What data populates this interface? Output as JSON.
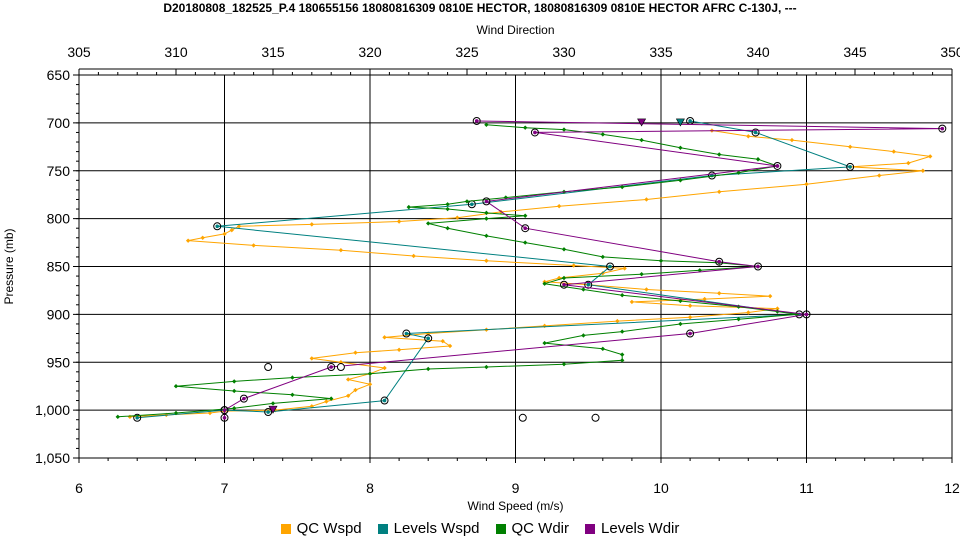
{
  "chart_data": {
    "type": "line",
    "title": "D20180808_182525_P.4 180655156 18080816309 0810E HECTOR, 18080816309 0810E HECTOR AFRC C-130J, ---",
    "xlabel": "Wind Speed (m/s)",
    "x2label": "Wind Direction",
    "ylabel": "Pressure (mb)",
    "xlim": [
      6,
      12
    ],
    "x2lim": [
      305,
      350
    ],
    "ylim": [
      650,
      1050
    ],
    "y_inverted": true,
    "grid": true,
    "x_ticks": [
      "6",
      "7",
      "8",
      "9",
      "10",
      "11",
      "12"
    ],
    "x2_ticks": [
      "305",
      "310",
      "315",
      "320",
      "325",
      "330",
      "335",
      "340",
      "345",
      "350"
    ],
    "y_ticks": [
      "650",
      "700",
      "750",
      "800",
      "850",
      "900",
      "950",
      "1,000",
      "1,050"
    ],
    "legend_position": "bottom",
    "series": [
      {
        "name": "QC Wspd",
        "color": "#FFA500",
        "axis": "bottom",
        "points": [
          [
            10.35,
            708
          ],
          [
            10.6,
            714
          ],
          [
            10.9,
            718
          ],
          [
            11.3,
            725
          ],
          [
            11.6,
            730
          ],
          [
            11.85,
            735
          ],
          [
            11.7,
            742
          ],
          [
            11.3,
            746
          ],
          [
            11.8,
            750
          ],
          [
            11.5,
            755
          ],
          [
            11.0,
            764
          ],
          [
            10.4,
            772
          ],
          [
            9.9,
            780
          ],
          [
            9.3,
            787
          ],
          [
            8.9,
            793
          ],
          [
            8.6,
            799
          ],
          [
            8.2,
            803
          ],
          [
            7.6,
            806
          ],
          [
            7.1,
            808
          ],
          [
            7.05,
            812
          ],
          [
            7.0,
            816
          ],
          [
            6.85,
            820
          ],
          [
            6.75,
            823
          ],
          [
            7.2,
            828
          ],
          [
            7.8,
            833
          ],
          [
            8.3,
            839
          ],
          [
            8.8,
            844
          ],
          [
            9.4,
            849
          ],
          [
            9.75,
            852
          ],
          [
            9.6,
            857
          ],
          [
            9.3,
            862
          ],
          [
            9.2,
            866
          ],
          [
            9.5,
            869
          ],
          [
            9.9,
            874
          ],
          [
            10.4,
            878
          ],
          [
            10.75,
            881
          ],
          [
            10.3,
            884
          ],
          [
            9.8,
            887
          ],
          [
            10.2,
            891
          ],
          [
            10.8,
            894
          ],
          [
            10.6,
            898
          ],
          [
            10.2,
            903
          ],
          [
            9.7,
            907
          ],
          [
            9.2,
            912
          ],
          [
            8.8,
            916
          ],
          [
            8.4,
            920
          ],
          [
            8.1,
            924
          ],
          [
            8.5,
            928
          ],
          [
            8.55,
            933
          ],
          [
            8.2,
            937
          ],
          [
            7.9,
            940
          ],
          [
            7.6,
            946
          ],
          [
            7.8,
            950
          ],
          [
            8.1,
            956
          ],
          [
            8.0,
            962
          ],
          [
            7.85,
            968
          ],
          [
            8.0,
            973
          ],
          [
            7.9,
            979
          ],
          [
            7.85,
            985
          ],
          [
            7.7,
            991
          ],
          [
            7.6,
            996
          ],
          [
            7.35,
            1000
          ],
          [
            7.0,
            1001
          ],
          [
            6.9,
            1003
          ],
          [
            6.6,
            1005
          ],
          [
            6.35,
            1007
          ]
        ]
      },
      {
        "name": "Levels Wspd",
        "color": "#008080",
        "axis": "bottom",
        "points": [
          [
            10.2,
            698
          ],
          [
            10.65,
            710
          ],
          [
            11.3,
            746
          ],
          [
            10.35,
            755
          ],
          [
            8.7,
            785
          ],
          [
            6.95,
            808
          ],
          [
            9.65,
            850
          ],
          [
            9.5,
            869
          ],
          [
            10.95,
            900
          ],
          [
            8.25,
            920
          ],
          [
            8.4,
            925
          ],
          [
            8.1,
            990
          ],
          [
            7.3,
            1002
          ],
          [
            7.0,
            1000
          ],
          [
            6.4,
            1008
          ]
        ]
      },
      {
        "name": "QC Wdir",
        "color": "#008000",
        "axis": "top",
        "points": [
          [
            326,
            702
          ],
          [
            328,
            705
          ],
          [
            330,
            707
          ],
          [
            332,
            712
          ],
          [
            334,
            718
          ],
          [
            336,
            726
          ],
          [
            338,
            733
          ],
          [
            340,
            738
          ],
          [
            341,
            745
          ],
          [
            339,
            752
          ],
          [
            336,
            760
          ],
          [
            333,
            767
          ],
          [
            330,
            772
          ],
          [
            327,
            778
          ],
          [
            325,
            782
          ],
          [
            324,
            785
          ],
          [
            322,
            788
          ],
          [
            324,
            790
          ],
          [
            326,
            794
          ],
          [
            328,
            797
          ],
          [
            326,
            800
          ],
          [
            323,
            805
          ],
          [
            324,
            810
          ],
          [
            326,
            818
          ],
          [
            328,
            825
          ],
          [
            330,
            832
          ],
          [
            332,
            840
          ],
          [
            335,
            844
          ],
          [
            338,
            846
          ],
          [
            340,
            850
          ],
          [
            337,
            854
          ],
          [
            334,
            858
          ],
          [
            330,
            862
          ],
          [
            329,
            868
          ],
          [
            331,
            874
          ],
          [
            333,
            880
          ],
          [
            336,
            886
          ],
          [
            339,
            892
          ],
          [
            341,
            897
          ],
          [
            342,
            900
          ],
          [
            339,
            905
          ],
          [
            336,
            910
          ],
          [
            333,
            918
          ],
          [
            331,
            922
          ],
          [
            329,
            930
          ],
          [
            332,
            936
          ],
          [
            333,
            942
          ],
          [
            333,
            948
          ],
          [
            330,
            952
          ],
          [
            326,
            955
          ],
          [
            323,
            957
          ],
          [
            320,
            962
          ],
          [
            316,
            966
          ],
          [
            313,
            970
          ],
          [
            310,
            975
          ],
          [
            313,
            980
          ],
          [
            316,
            984
          ],
          [
            318,
            988
          ],
          [
            315,
            993
          ],
          [
            313,
            998
          ],
          [
            310,
            1003
          ],
          [
            307,
            1007
          ]
        ]
      },
      {
        "name": "Levels Wdir",
        "color": "#800080",
        "axis": "top",
        "points": [
          [
            325.5,
            698
          ],
          [
            349.5,
            706
          ],
          [
            328.5,
            710
          ],
          [
            341,
            745
          ],
          [
            326,
            782
          ],
          [
            328,
            810
          ],
          [
            338,
            845
          ],
          [
            340,
            850
          ],
          [
            330,
            869
          ],
          [
            342.5,
            900
          ],
          [
            336.5,
            920
          ],
          [
            318,
            955
          ],
          [
            313.5,
            988
          ],
          [
            312.5,
            1000
          ],
          [
            312.5,
            1008
          ]
        ]
      }
    ],
    "annotations": {
      "open_circles_wspd": [
        [
          7.3,
          955
        ],
        [
          7.8,
          955
        ],
        [
          9.05,
          1008
        ],
        [
          9.55,
          1008
        ]
      ],
      "triangles_wdir": [
        [
          334,
          700
        ],
        [
          336,
          700
        ],
        [
          315,
          1000
        ]
      ]
    }
  }
}
